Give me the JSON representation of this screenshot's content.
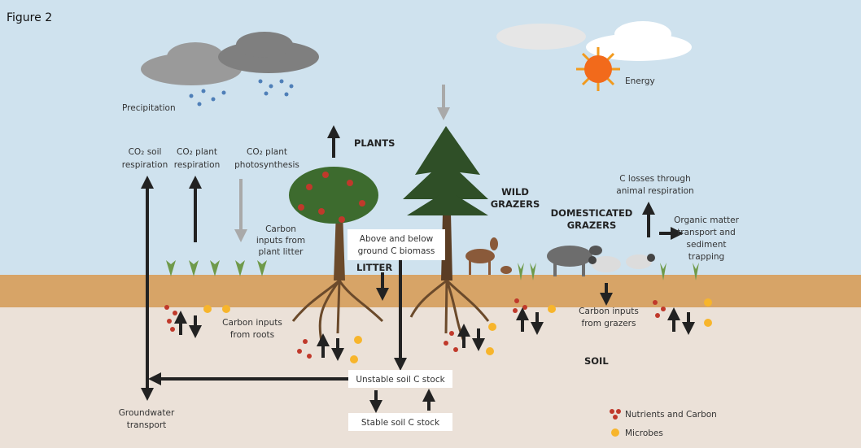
{
  "figure_label": "Figure 2",
  "precipitation": "Precipitation",
  "energy": "Energy",
  "co2_soil_respiration": [
    "CO₂ soil",
    "respiration"
  ],
  "co2_plant_respiration": [
    "CO₂ plant",
    "respiration"
  ],
  "co2_plant_photosynthesis": [
    "CO₂ plant",
    "photosynthesis"
  ],
  "plants": "PLANTS",
  "carbon_inputs_plant_litter": [
    "Carbon",
    "inputs from",
    "plant litter"
  ],
  "biomass": [
    "Above and below",
    "ground C biomass"
  ],
  "litter": "LITTER",
  "wild_grazers": [
    "WILD",
    "GRAZERS"
  ],
  "domesticated_grazers": [
    "DOMESTICATED",
    "GRAZERS"
  ],
  "c_losses": [
    "C losses through",
    "animal respiration"
  ],
  "organic_matter": [
    "Organic matter",
    "transport and",
    "sediment",
    "trapping"
  ],
  "carbon_inputs_roots": [
    "Carbon inputs",
    "from roots"
  ],
  "carbon_inputs_grazers": [
    "Carbon inputs",
    "from grazers"
  ],
  "soil": "SOIL",
  "unstable_stock": "Unstable soil C stock",
  "stable_stock": "Stable soil C stock",
  "groundwater": [
    "Groundwater",
    "transport"
  ],
  "legend": {
    "nutrients": "Nutrients and Carbon",
    "microbes": "Microbes"
  }
}
